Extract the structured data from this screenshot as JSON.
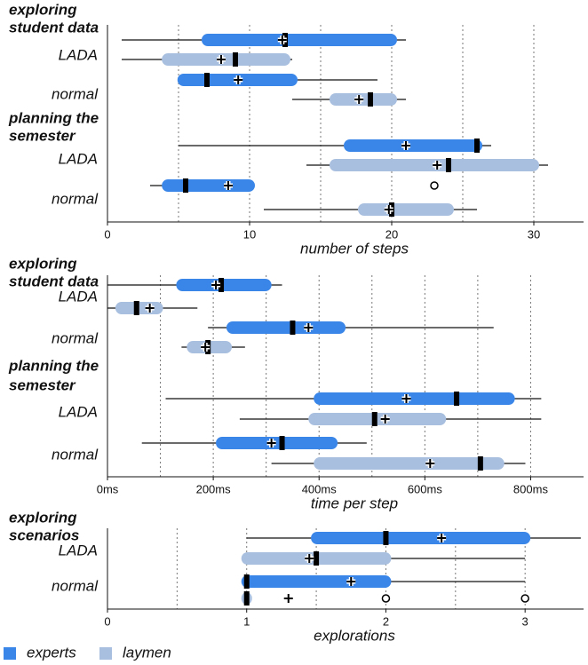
{
  "legend": {
    "series": [
      {
        "name": "experts",
        "color": "#3a86e8"
      },
      {
        "name": "laymen",
        "color": "#a8bfdf"
      }
    ]
  },
  "chart_data": [
    {
      "type": "box",
      "xlabel": "number of steps",
      "xlim": [
        0,
        33.5
      ],
      "xticks": [
        0,
        10,
        20,
        30
      ],
      "xgrid": [
        5,
        10,
        15,
        20,
        25,
        30
      ],
      "groups": [
        {
          "title_lines": [
            "exploring",
            "student data"
          ],
          "rows": [
            {
              "label": "LADA",
              "boxes": [
                {
                  "whislo": 1,
                  "q1": 7,
                  "med": 12.5,
                  "q3": 20,
                  "whishi": 21,
                  "mean": 12.3
                },
                {
                  "whislo": 1,
                  "q1": 4.2,
                  "med": 9,
                  "q3": 12.5,
                  "whishi": 13,
                  "mean": 8
                }
              ]
            },
            {
              "label": "normal",
              "boxes": [
                {
                  "whislo": 5,
                  "q1": 5.3,
                  "med": 7,
                  "q3": 13,
                  "whishi": 19,
                  "mean": 9.2
                },
                {
                  "whislo": 13,
                  "q1": 16,
                  "med": 18.5,
                  "q3": 20,
                  "whishi": 21,
                  "mean": 17.7
                }
              ]
            }
          ]
        },
        {
          "title_lines": [
            "planning the",
            "semester"
          ],
          "rows": [
            {
              "label": "LADA",
              "boxes": [
                {
                  "whislo": 5,
                  "q1": 17,
                  "med": 26,
                  "q3": 26,
                  "whishi": 27,
                  "mean": 21
                },
                {
                  "whislo": 14,
                  "q1": 16,
                  "med": 24,
                  "q3": 30,
                  "whishi": 31,
                  "mean": 23.2
                }
              ]
            },
            {
              "label": "normal",
              "boxes": [
                {
                  "whislo": 3,
                  "q1": 4.2,
                  "med": 5.5,
                  "q3": 10,
                  "whishi": 10,
                  "mean": 8.5,
                  "fliers": [
                    23
                  ]
                },
                {
                  "whislo": 11,
                  "q1": 18,
                  "med": 20,
                  "q3": 24,
                  "whishi": 26,
                  "mean": 19.8
                }
              ]
            }
          ]
        }
      ]
    },
    {
      "type": "box",
      "xlabel": "time per step",
      "xlim": [
        0,
        900
      ],
      "xticks": [
        {
          "value": 0,
          "label": "0ms"
        },
        {
          "value": 200,
          "label": "200ms"
        },
        {
          "value": 400,
          "label": "400ms"
        },
        {
          "value": 600,
          "label": "600ms"
        },
        {
          "value": 800,
          "label": "800ms"
        }
      ],
      "xgrid": [
        100,
        200,
        300,
        400,
        500,
        600,
        700,
        800
      ],
      "groups": [
        {
          "title_lines": [
            "exploring",
            "student data"
          ],
          "rows": [
            {
              "label": "LADA",
              "boxes": [
                {
                  "whislo": 0,
                  "q1": 140,
                  "med": 215,
                  "q3": 300,
                  "whishi": 330,
                  "mean": 205
                },
                {
                  "whislo": 0,
                  "q1": 25,
                  "med": 55,
                  "q3": 95,
                  "whishi": 170,
                  "mean": 80
                }
              ]
            },
            {
              "label": "normal",
              "boxes": [
                {
                  "whislo": 190,
                  "q1": 235,
                  "med": 350,
                  "q3": 440,
                  "whishi": 730,
                  "mean": 380
                },
                {
                  "whislo": 140,
                  "q1": 160,
                  "med": 190,
                  "q3": 225,
                  "whishi": 260,
                  "mean": 185
                }
              ]
            }
          ]
        },
        {
          "title_lines": [
            "planning the",
            "semester"
          ],
          "rows": [
            {
              "label": "LADA",
              "boxes": [
                {
                  "whislo": 110,
                  "q1": 400,
                  "med": 660,
                  "q3": 760,
                  "whishi": 820,
                  "mean": 565
                },
                {
                  "whislo": 250,
                  "q1": 390,
                  "med": 505,
                  "q3": 630,
                  "whishi": 820,
                  "mean": 525
                }
              ]
            },
            {
              "label": "normal",
              "boxes": [
                {
                  "whislo": 65,
                  "q1": 215,
                  "med": 330,
                  "q3": 425,
                  "whishi": 490,
                  "mean": 310
                },
                {
                  "whislo": 310,
                  "q1": 400,
                  "med": 705,
                  "q3": 740,
                  "whishi": 790,
                  "mean": 610
                }
              ]
            }
          ]
        }
      ]
    },
    {
      "type": "box",
      "xlabel": "explorations",
      "xlim": [
        0,
        3.42
      ],
      "xticks": [
        0,
        1,
        2,
        3
      ],
      "xgrid": [
        0.5,
        1,
        1.5,
        2,
        2.5,
        3
      ],
      "groups": [
        {
          "title_lines": [
            "exploring",
            "scenarios"
          ],
          "rows": [
            {
              "label": "LADA",
              "boxes": [
                {
                  "whislo": 1,
                  "q1": 1.5,
                  "med": 2,
                  "q3": 3,
                  "whishi": 3.4,
                  "mean": 2.4
                },
                {
                  "whislo": 1,
                  "q1": 1,
                  "med": 1.5,
                  "q3": 2,
                  "whishi": 3,
                  "mean": 1.45
                }
              ]
            },
            {
              "label": "normal",
              "boxes": [
                {
                  "whislo": 1,
                  "q1": 1,
                  "med": 1,
                  "q3": 2,
                  "whishi": 3,
                  "mean": 1.75
                },
                {
                  "whislo": 1,
                  "q1": 1,
                  "med": 1,
                  "q3": 1,
                  "whishi": 1,
                  "mean": 1.3,
                  "fliers": [
                    2,
                    3
                  ]
                }
              ]
            }
          ]
        }
      ]
    }
  ]
}
